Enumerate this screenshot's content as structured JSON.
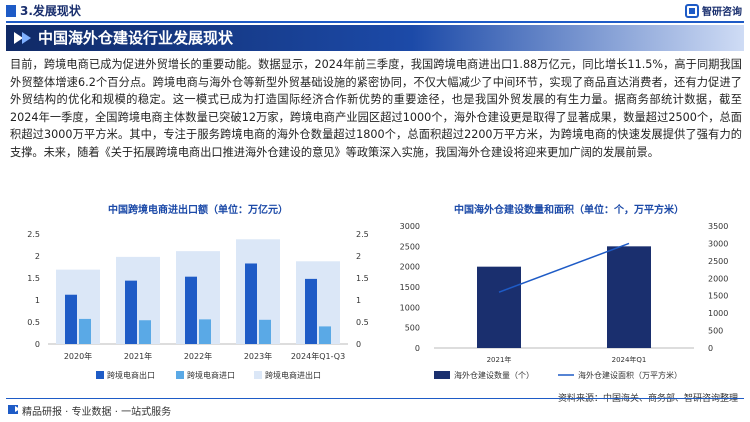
{
  "header": {
    "section_title": "3.发展现状",
    "logo_text": "智研咨询"
  },
  "banner": {
    "title": "中国海外仓建设行业发展现状"
  },
  "paragraph": "目前，跨境电商已成为促进外贸增长的重要动能。数据显示，2024年前三季度，我国跨境电商进出口1.88万亿元，同比增长11.5%，高于同期我国外贸整体增速6.2个百分点。跨境电商与海外仓等新型外贸基础设施的紧密协同，不仅大幅减少了中间环节，实现了商品直达消费者，还有力促进了外贸结构的优化和规模的稳定。这一模式已成为打造国际经济合作新优势的重要途径，也是我国外贸发展的有生力量。据商务部统计数据，截至2024年一季度，全国跨境电商主体数量已突破12万家，跨境电商产业园区超过1000个，海外仓建设更是取得了显著成果，数量超过2500个，总面积超过3000万平方米。其中，专注于服务跨境电商的海外仓数量超过1800个，总面积超过2200万平方米，为跨境电商的快速发展提供了强有力的支撑。未来，随着《关于拓展跨境电商出口推进海外仓建设的意见》等政策深入实施，我国海外仓建设将迎来更加广阔的发展前景。",
  "source": "资料来源：中国海关、商务部、智研咨询整理",
  "footer": {
    "text": "精品研报 · 专业数据 · 一站式服务"
  },
  "colors": {
    "navy": "#1a2f6e",
    "blue": "#1e5bc6",
    "light_blue": "#5aa9e6",
    "pale_blue": "#dbe7f7"
  },
  "chart_data": [
    {
      "type": "bar",
      "title": "中国跨境电商进出口额（单位：万亿元）",
      "categories": [
        "2020年",
        "2021年",
        "2022年",
        "2023年",
        "2024年Q1-Q3"
      ],
      "series": [
        {
          "name": "跨境电商出口",
          "values": [
            1.12,
            1.44,
            1.53,
            1.83,
            1.48
          ]
        },
        {
          "name": "跨境电商进口",
          "values": [
            0.57,
            0.54,
            0.56,
            0.55,
            0.4
          ]
        },
        {
          "name": "跨境电商进出口",
          "values": [
            1.69,
            1.98,
            2.11,
            2.38,
            1.88
          ]
        }
      ],
      "yticks_left": [
        "0",
        "0.5",
        "1",
        "1.5",
        "2",
        "2.5"
      ],
      "yticks_right": [
        "0",
        "0.5",
        "1",
        "1.5",
        "2",
        "2.5"
      ],
      "ylim": [
        0,
        2.5
      ],
      "legend_position": "bottom"
    },
    {
      "type": "bar",
      "title": "中国海外仓建设数量和面积（单位：个，万平方米）",
      "categories": [
        "2021年",
        "2024年Q1"
      ],
      "series": [
        {
          "name": "海外仓建设数量（个）",
          "type": "bar",
          "values": [
            2000,
            2500
          ]
        },
        {
          "name": "海外仓建设面积（万平方米）",
          "type": "line",
          "values": [
            1600,
            3000
          ]
        }
      ],
      "yticks_left": [
        "0",
        "500",
        "1000",
        "1500",
        "2000",
        "2500",
        "3000"
      ],
      "yticks_right": [
        "0",
        "500",
        "1000",
        "1500",
        "2000",
        "2500",
        "3000",
        "3500"
      ],
      "ylim_left": [
        0,
        3000
      ],
      "ylim_right": [
        0,
        3500
      ],
      "legend_position": "bottom"
    }
  ]
}
